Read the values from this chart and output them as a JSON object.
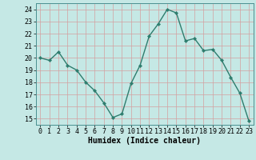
{
  "x": [
    0,
    1,
    2,
    3,
    4,
    5,
    6,
    7,
    8,
    9,
    10,
    11,
    12,
    13,
    14,
    15,
    16,
    17,
    18,
    19,
    20,
    21,
    22,
    23
  ],
  "y": [
    20.0,
    19.8,
    20.5,
    19.4,
    19.0,
    18.0,
    17.3,
    16.3,
    15.1,
    15.4,
    17.9,
    19.4,
    21.8,
    22.8,
    24.0,
    23.7,
    21.4,
    21.6,
    20.6,
    20.7,
    19.8,
    18.4,
    17.1,
    14.8
  ],
  "line_color": "#2e7d6e",
  "marker": "D",
  "markersize": 2.2,
  "linewidth": 1.0,
  "bg_color": "#c5e8e5",
  "grid_color": "#d4a0a0",
  "xlabel": "Humidex (Indice chaleur)",
  "xlim": [
    -0.5,
    23.5
  ],
  "ylim": [
    14.5,
    24.5
  ],
  "yticks": [
    15,
    16,
    17,
    18,
    19,
    20,
    21,
    22,
    23,
    24
  ],
  "xticks": [
    0,
    1,
    2,
    3,
    4,
    5,
    6,
    7,
    8,
    9,
    10,
    11,
    12,
    13,
    14,
    15,
    16,
    17,
    18,
    19,
    20,
    21,
    22,
    23
  ],
  "xlabel_fontsize": 7.0,
  "tick_fontsize": 6.0
}
